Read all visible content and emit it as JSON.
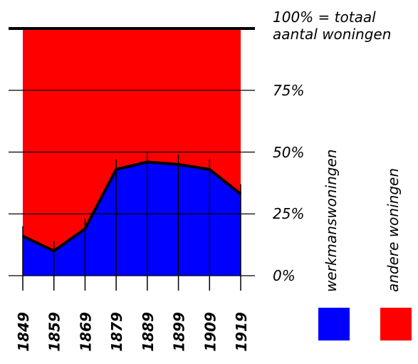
{
  "chart_data": {
    "type": "area",
    "stacked": true,
    "x": [
      1849,
      1859,
      1869,
      1879,
      1889,
      1899,
      1909,
      1919
    ],
    "xlim": [
      1849,
      1919
    ],
    "series": [
      {
        "name": "werkmanswoningen",
        "color": "#0000ff",
        "values": [
          16,
          10,
          19,
          43,
          46,
          45,
          43,
          33
        ]
      },
      {
        "name": "andere woningen",
        "color": "#ff0000",
        "values": [
          84,
          90,
          81,
          57,
          54,
          55,
          57,
          67
        ]
      }
    ],
    "ylim": [
      0,
      100
    ],
    "yticks": [
      {
        "value": 0,
        "label": "0%"
      },
      {
        "value": 25,
        "label": "25%"
      },
      {
        "value": 50,
        "label": "50%"
      },
      {
        "value": 75,
        "label": "75%"
      },
      {
        "value": 100,
        "label": "100% = totaal aantal woningen"
      }
    ],
    "grid": true
  }
}
